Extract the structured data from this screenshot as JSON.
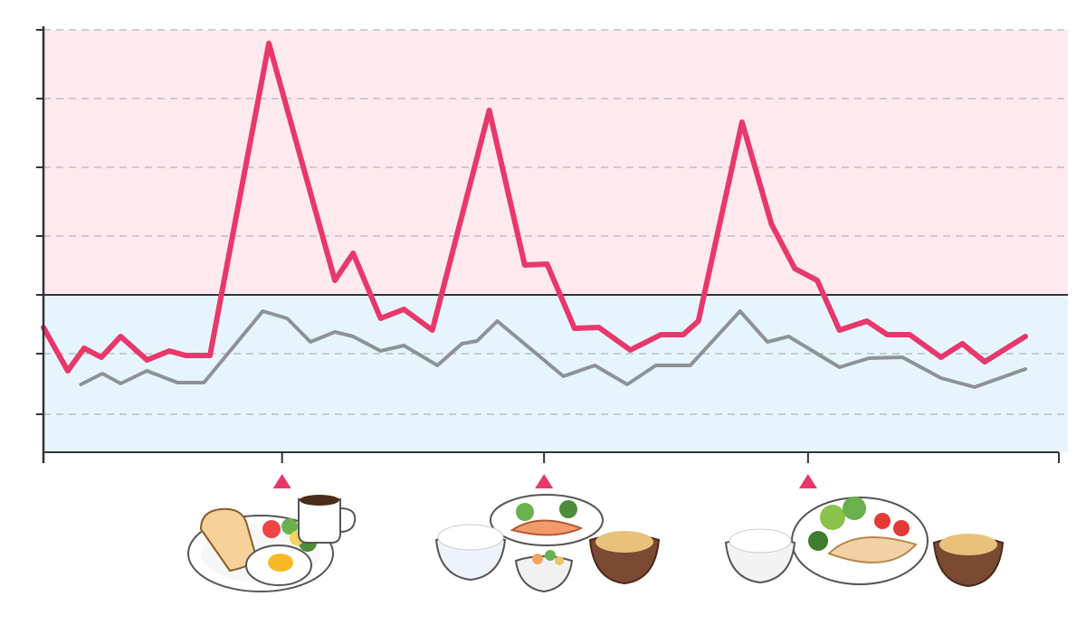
{
  "chart_data": {
    "type": "line",
    "xlim": [
      0,
      100
    ],
    "xticks": [
      23.5,
      49.3,
      75.3,
      100
    ],
    "ylim": [
      0,
      467
    ],
    "yticks": [
      42,
      109,
      174,
      239,
      315,
      391,
      467
    ],
    "threshold": 174,
    "zone_colors": {
      "above": "#fde9ee",
      "below": "#e6f5fd"
    },
    "grid": true,
    "series": [
      {
        "color": "#e8386b",
        "x": [
          0,
          2.4,
          4.0,
          5.7,
          7.6,
          10.2,
          12.4,
          14.0,
          16.4,
          22.2,
          28.7,
          30.5,
          33.2,
          35.5,
          38.3,
          43.9,
          47.4,
          49.6,
          52.3,
          54.7,
          57.8,
          60.8,
          63.0,
          64.5,
          68.8,
          71.7,
          74.0,
          76.2,
          78.4,
          81.1,
          83.1,
          85.3,
          88.4,
          90.5,
          92.7,
          96.7
        ],
        "values": [
          138,
          90,
          115,
          105,
          128,
          102,
          112,
          107,
          107,
          452,
          190,
          220,
          148,
          158,
          135,
          378,
          207,
          208,
          137,
          138,
          113,
          130,
          130,
          145,
          365,
          252,
          203,
          190,
          135,
          145,
          130,
          130,
          105,
          120,
          100,
          128
        ]
      },
      {
        "color": "#8e9296",
        "x": [
          3.7,
          5.8,
          7.6,
          10.2,
          13.2,
          15.8,
          21.6,
          24.0,
          26.3,
          28.7,
          30.5,
          33.2,
          35.5,
          38.8,
          41.2,
          42.7,
          44.7,
          51.2,
          54.3,
          57.5,
          60.3,
          63.7,
          68.6,
          71.3,
          73.4,
          78.4,
          81.3,
          84.6,
          88.4,
          91.7,
          96.7
        ],
        "values": [
          75,
          87,
          76,
          90,
          77,
          77,
          156,
          148,
          122,
          133,
          128,
          112,
          118,
          96,
          120,
          123,
          145,
          84,
          96,
          75,
          96,
          96,
          156,
          122,
          128,
          94,
          104,
          105,
          82,
          72,
          92
        ]
      }
    ]
  }
}
